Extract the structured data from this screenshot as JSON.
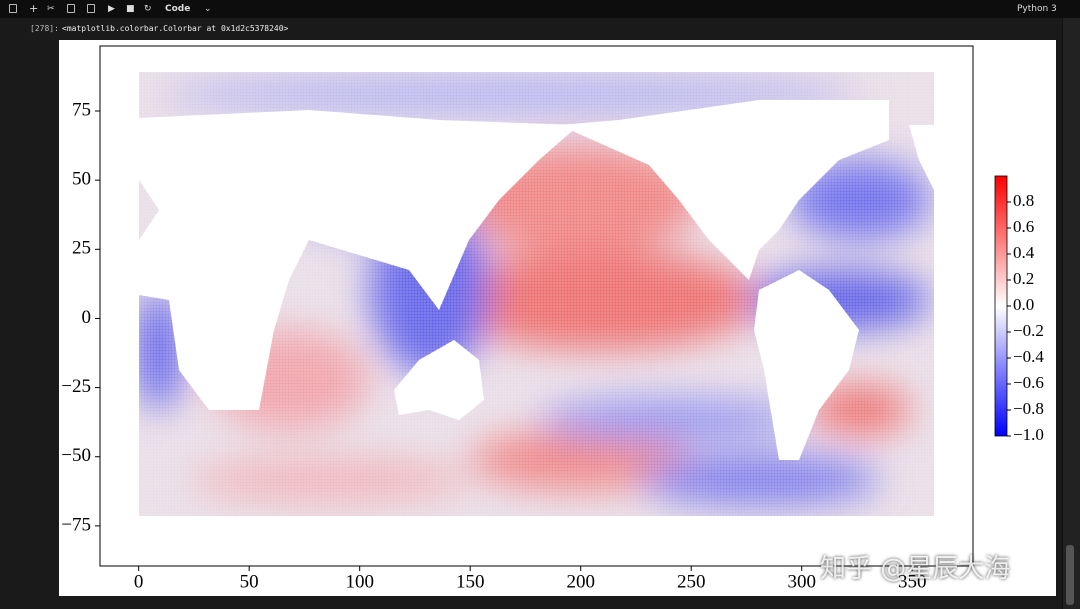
{
  "toolbar": {
    "cell_type": "Code",
    "kernel": "Python 3"
  },
  "output": {
    "prompt": "[278]:",
    "text": "<matplotlib.colorbar.Colorbar at 0x1d2c5378240>"
  },
  "chart_data": {
    "type": "heatmap",
    "xlim": [
      -17.5,
      377.5
    ],
    "ylim": [
      -89.5,
      98.5
    ],
    "xticks": [
      0,
      50,
      100,
      150,
      200,
      250,
      300,
      350
    ],
    "yticks": [
      {
        "value": -75,
        "label": "−75"
      },
      {
        "value": -50,
        "label": "−50"
      },
      {
        "value": -25,
        "label": "−25"
      },
      0,
      25,
      50,
      75
    ],
    "colormap": [
      "#0000ff",
      "#ffffff",
      "#ff0000"
    ],
    "clim": [
      -1,
      1
    ],
    "colorbar_ticks": [
      {
        "value": -1,
        "label": "−1.0"
      },
      {
        "value": -0.8,
        "label": "−0.8"
      },
      {
        "value": -0.6,
        "label": "−0.6"
      },
      {
        "value": -0.4,
        "label": "−0.4"
      },
      {
        "value": -0.2,
        "label": "−0.2"
      },
      {
        "value": 0,
        "label": "0.0"
      },
      {
        "value": 0.2,
        "label": "0.2"
      },
      {
        "value": 0.4,
        "label": "0.4"
      },
      {
        "value": 0.6,
        "label": "0.6"
      },
      {
        "value": 0.8,
        "label": "0.8"
      }
    ]
  },
  "watermark": "知乎 @星辰大海"
}
